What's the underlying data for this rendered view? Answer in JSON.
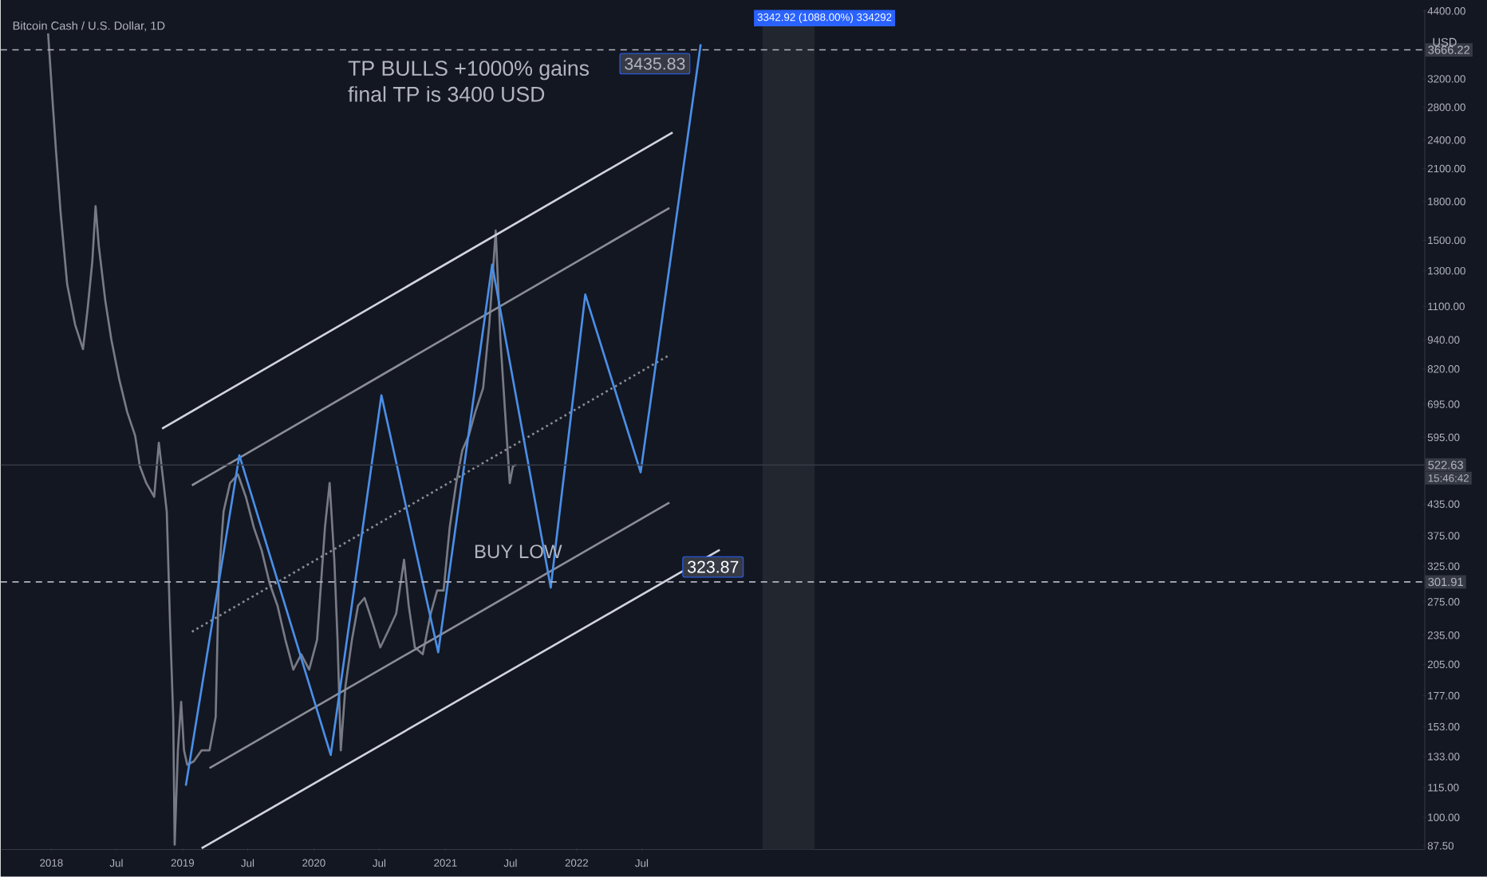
{
  "chart_data": {
    "type": "line",
    "title": "Bitcoin Cash / U.S. Dollar, 1D",
    "ylabel": "USD",
    "log": true,
    "xlim": [
      "2017-08-13",
      "2028-06-17"
    ],
    "ylim": [
      86,
      4430
    ],
    "xticks": [
      {
        "value": "2018-01-01",
        "label": "2018"
      },
      {
        "value": "2018-07-01",
        "label": "Jul"
      },
      {
        "value": "2019-01-01",
        "label": "2019"
      },
      {
        "value": "2019-07-01",
        "label": "Jul"
      },
      {
        "value": "2020-01-01",
        "label": "2020"
      },
      {
        "value": "2020-07-01",
        "label": "Jul"
      },
      {
        "value": "2021-01-01",
        "label": "2021"
      },
      {
        "value": "2021-07-01",
        "label": "Jul"
      },
      {
        "value": "2022-01-01",
        "label": "2022"
      },
      {
        "value": "2022-07-01",
        "label": "Jul"
      }
    ],
    "yticks": [
      {
        "value": 87.5,
        "label": "87.50"
      },
      {
        "value": 100,
        "label": "100.00"
      },
      {
        "value": 115,
        "label": "115.00"
      },
      {
        "value": 133,
        "label": "133.00"
      },
      {
        "value": 153,
        "label": "153.00"
      },
      {
        "value": 177,
        "label": "177.00"
      },
      {
        "value": 205,
        "label": "205.00"
      },
      {
        "value": 235,
        "label": "235.00"
      },
      {
        "value": 275,
        "label": "275.00"
      },
      {
        "value": 325,
        "label": "325.00"
      },
      {
        "value": 375,
        "label": "375.00"
      },
      {
        "value": 435,
        "label": "435.00"
      },
      {
        "value": 595,
        "label": "595.00"
      },
      {
        "value": 695,
        "label": "695.00"
      },
      {
        "value": 820,
        "label": "820.00"
      },
      {
        "value": 940,
        "label": "940.00"
      },
      {
        "value": 1100,
        "label": "1100.00"
      },
      {
        "value": 1300,
        "label": "1300.00"
      },
      {
        "value": 1500,
        "label": "1500.00"
      },
      {
        "value": 1800,
        "label": "1800.00"
      },
      {
        "value": 2100,
        "label": "2100.00"
      },
      {
        "value": 2400,
        "label": "2400.00"
      },
      {
        "value": 2800,
        "label": "2800.00"
      },
      {
        "value": 3200,
        "label": "3200.00"
      },
      {
        "value": 4400,
        "label": "4400.00"
      }
    ],
    "series": [
      {
        "color": "#787b86",
        "x": [
          "2017-12-23",
          "2018-01-05",
          "2018-01-14",
          "2018-01-27",
          "2018-02-14",
          "2018-03-08",
          "2018-03-30",
          "2018-04-12",
          "2018-04-25",
          "2018-05-04",
          "2018-05-13",
          "2018-05-31",
          "2018-06-17",
          "2018-07-09",
          "2018-07-31",
          "2018-08-22",
          "2018-09-04",
          "2018-09-22",
          "2018-10-14",
          "2018-10-27",
          "2018-11-09",
          "2018-11-18",
          "2018-11-27",
          "2018-12-06",
          "2018-12-10",
          "2018-12-19",
          "2018-12-28",
          "2019-01-05",
          "2019-01-14",
          "2019-02-01",
          "2019-02-23",
          "2019-03-17",
          "2019-04-03",
          "2019-04-12",
          "2019-04-25",
          "2019-05-13",
          "2019-06-04",
          "2019-06-26",
          "2019-07-18",
          "2019-08-09",
          "2019-08-31",
          "2019-09-22",
          "2019-10-14",
          "2019-11-05",
          "2019-11-27",
          "2019-12-19",
          "2020-01-10",
          "2020-02-01",
          "2020-02-14",
          "2020-02-27",
          "2020-03-07",
          "2020-03-16",
          "2020-03-29",
          "2020-04-16",
          "2020-05-03",
          "2020-05-21",
          "2020-06-12",
          "2020-07-04",
          "2020-07-26",
          "2020-08-17",
          "2020-09-08",
          "2020-09-21",
          "2020-10-08",
          "2020-10-30",
          "2020-11-21",
          "2020-12-09",
          "2020-12-27",
          "2021-01-13",
          "2021-01-31",
          "2021-02-17",
          "2021-03-07",
          "2021-03-25",
          "2021-04-16",
          "2021-05-03",
          "2021-05-21",
          "2021-06-03",
          "2021-06-16",
          "2021-06-29",
          "2021-07-08",
          "2021-07-17"
        ],
        "values": [
          3960,
          2840,
          2280,
          1700,
          1220,
          1010,
          900,
          1090,
          1360,
          1760,
          1460,
          1130,
          940,
          780,
          670,
          600,
          520,
          480,
          450,
          580,
          480,
          420,
          250,
          160,
          88,
          137,
          172,
          137,
          128,
          130,
          137,
          137,
          160,
          310,
          420,
          480,
          500,
          450,
          390,
          350,
          300,
          270,
          230,
          200,
          215,
          200,
          230,
          390,
          480,
          335,
          230,
          137,
          185,
          230,
          270,
          280,
          250,
          222,
          240,
          260,
          335,
          270,
          222,
          215,
          260,
          290,
          290,
          390,
          480,
          560,
          600,
          670,
          750,
          1010,
          1570,
          940,
          670,
          480,
          520,
          523
        ]
      },
      {
        "color": "#d1d4dc",
        "x": [
          "2018-11-05",
          "2022-09-25"
        ],
        "values": [
          620,
          2489
        ]
      },
      {
        "color": "#d1d4dc",
        "x": [
          "2019-02-23",
          "2023-02-03"
        ],
        "values": [
          86.5,
          351
        ]
      },
      {
        "color": "#8a8d96",
        "x": [
          "2019-01-27",
          "2022-09-16"
        ],
        "values": [
          475,
          1746
        ]
      },
      {
        "color": "#8a8d96",
        "x": [
          "2019-03-17",
          "2022-09-16"
        ],
        "values": [
          126,
          438
        ]
      },
      {
        "color": "#8a8d96",
        "line_style": "dotted",
        "x": [
          "2019-01-27",
          "2022-09-12"
        ],
        "values": [
          239,
          872
        ]
      },
      {
        "color": "#4a8fe7",
        "x": [
          "2019-01-10",
          "2019-06-08",
          "2020-02-17",
          "2020-07-07",
          "2020-12-12",
          "2021-05-11",
          "2021-10-21",
          "2022-01-25",
          "2022-06-28",
          "2022-12-12"
        ],
        "values": [
          116,
          547,
          134,
          725,
          217,
          1338,
          294,
          1163,
          505,
          3765
        ]
      }
    ],
    "ref_lines": [
      {
        "axis": "y",
        "value": 3666.22,
        "label": "3666.22",
        "line_style": "dashed",
        "color": "#b2b5be"
      },
      {
        "axis": "y",
        "value": 301.91,
        "label": "301.91",
        "line_style": "dashed",
        "color": "#b2b5be"
      },
      {
        "axis": "y",
        "value": 522.63,
        "label": "522.63",
        "line_style": "solid",
        "color": "#363a45"
      }
    ],
    "bands": [
      {
        "axis": "x",
        "from": "2023-06-02",
        "to": "2023-10-25",
        "label": "3342.92 (1088.00%) 334292",
        "color": "#22262f"
      }
    ],
    "annotations": [
      "TP BULLS +1000% gains",
      "final TP is 3400 USD",
      "BUY LOW",
      "15:46:42",
      "3435.83",
      {
        "text": "323.87",
        "x": "2022-10-22",
        "y": 323.87
      }
    ]
  }
}
